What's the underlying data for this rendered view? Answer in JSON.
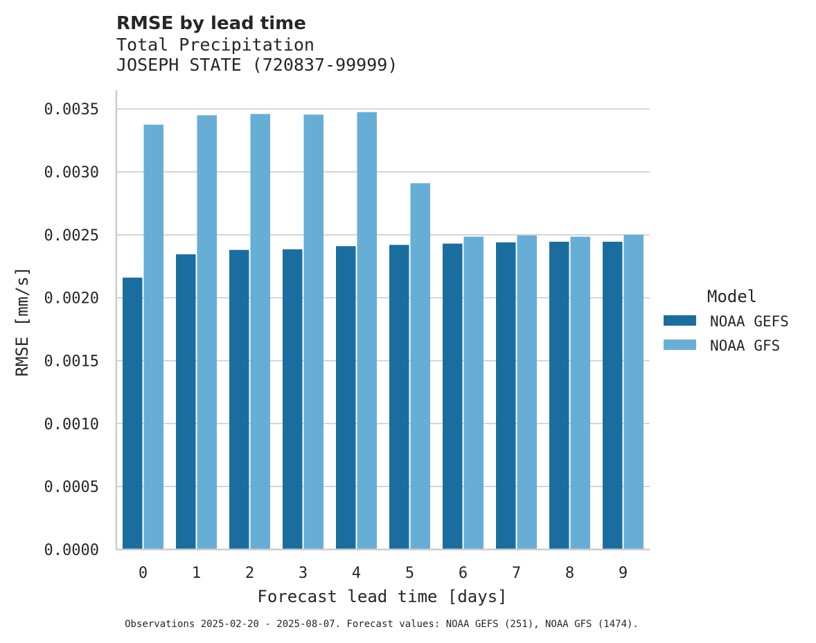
{
  "chart_data": {
    "type": "bar",
    "title": "RMSE by lead time",
    "subtitle_lines": [
      "Total Precipitation",
      "JOSEPH STATE (720837-99999)"
    ],
    "xlabel": "Forecast lead time [days]",
    "ylabel": "RMSE [mm/s]",
    "categories": [
      "0",
      "1",
      "2",
      "3",
      "4",
      "5",
      "6",
      "7",
      "8",
      "9"
    ],
    "ylim": [
      0,
      0.00365
    ],
    "yticks": [
      "0.0000",
      "0.0005",
      "0.0010",
      "0.0015",
      "0.0020",
      "0.0025",
      "0.0030",
      "0.0035"
    ],
    "ytick_values": [
      0,
      0.0005,
      0.001,
      0.0015,
      0.002,
      0.0025,
      0.003,
      0.0035
    ],
    "grid": "horizontal",
    "legend": {
      "title": "Model",
      "placement": "right",
      "entries": [
        "NOAA GEFS",
        "NOAA GFS"
      ]
    },
    "series": [
      {
        "name": "NOAA GEFS",
        "color": "#1a6e9f",
        "values": [
          0.00216,
          0.002345,
          0.00238,
          0.002385,
          0.00241,
          0.00242,
          0.00243,
          0.00244,
          0.002445,
          0.002445
        ]
      },
      {
        "name": "NOAA GFS",
        "color": "#67aed7",
        "values": [
          0.003375,
          0.00345,
          0.00346,
          0.003455,
          0.003475,
          0.00291,
          0.002485,
          0.002495,
          0.002485,
          0.0025
        ]
      }
    ],
    "footnote": "Observations 2025-02-20 - 2025-08-07. Forecast values: NOAA GEFS (251), NOAA GFS (1474)."
  }
}
